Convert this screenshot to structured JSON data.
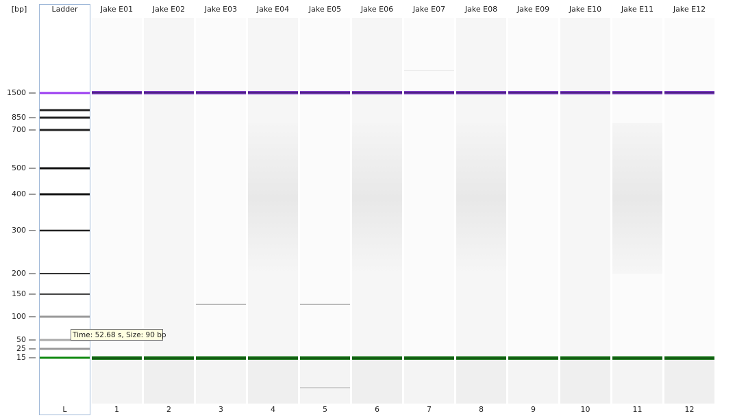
{
  "axis_label": "[bp]",
  "size_labels": [
    1500,
    850,
    700,
    500,
    400,
    300,
    200,
    150,
    100,
    50,
    25,
    15
  ],
  "lanes": [
    {
      "header": "Ladder",
      "label": "L"
    },
    {
      "header": "Jake E01",
      "label": "1"
    },
    {
      "header": "Jake E02",
      "label": "2"
    },
    {
      "header": "Jake E03",
      "label": "3"
    },
    {
      "header": "Jake E04",
      "label": "4"
    },
    {
      "header": "Jake E05",
      "label": "5"
    },
    {
      "header": "Jake E06",
      "label": "6"
    },
    {
      "header": "Jake E07",
      "label": "7"
    },
    {
      "header": "Jake E08",
      "label": "8"
    },
    {
      "header": "Jake E09",
      "label": "9"
    },
    {
      "header": "Jake E10",
      "label": "10"
    },
    {
      "header": "Jake E11",
      "label": "11"
    },
    {
      "header": "Jake E12",
      "label": "12"
    }
  ],
  "tooltip": "Time: 52.68 s, Size: 90 bp"
}
